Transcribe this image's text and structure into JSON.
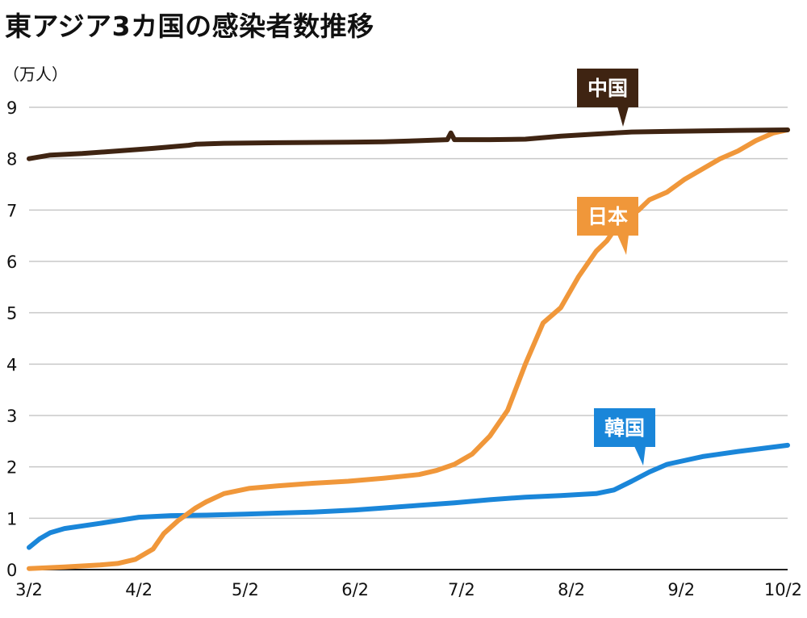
{
  "chart_data": {
    "type": "line",
    "title": "東アジア3カ国の感染者数推移",
    "unit_label": "（万人）",
    "ylim": [
      0,
      9
    ],
    "y_ticks": [
      "0",
      "1",
      "2",
      "3",
      "4",
      "5",
      "6",
      "7",
      "8",
      "9"
    ],
    "x_ticks": [
      "3/2",
      "4/2",
      "5/2",
      "6/2",
      "7/2",
      "8/2",
      "9/2",
      "10/2"
    ],
    "x_ticks_days": [
      0,
      31,
      61,
      92,
      122,
      153,
      184,
      214
    ],
    "xlim_days": [
      0,
      214
    ],
    "grid": true,
    "series": [
      {
        "name": "中国",
        "color": "#3f2412",
        "x_days": [
          0,
          6,
          15,
          25,
          35,
          45,
          47,
          55,
          70,
          90,
          100,
          110,
          118,
          119,
          120,
          121,
          130,
          140,
          150,
          160,
          170,
          180,
          190,
          200,
          214
        ],
        "values": [
          8.0,
          8.07,
          8.1,
          8.15,
          8.2,
          8.26,
          8.28,
          8.3,
          8.31,
          8.32,
          8.33,
          8.35,
          8.37,
          8.5,
          8.37,
          8.37,
          8.37,
          8.38,
          8.44,
          8.48,
          8.52,
          8.53,
          8.54,
          8.55,
          8.56
        ]
      },
      {
        "name": "日本",
        "color": "#f0973a",
        "x_days": [
          0,
          10,
          20,
          25,
          30,
          35,
          38,
          42,
          47,
          50,
          55,
          62,
          70,
          80,
          90,
          100,
          110,
          115,
          120,
          125,
          130,
          135,
          140,
          145,
          150,
          155,
          160,
          163,
          165,
          168,
          172,
          175,
          180,
          185,
          190,
          195,
          200,
          205,
          210,
          214
        ],
        "values": [
          0.02,
          0.05,
          0.09,
          0.12,
          0.2,
          0.4,
          0.7,
          0.95,
          1.2,
          1.32,
          1.48,
          1.58,
          1.63,
          1.68,
          1.72,
          1.78,
          1.85,
          1.93,
          2.05,
          2.25,
          2.6,
          3.1,
          4.0,
          4.8,
          5.1,
          5.7,
          6.2,
          6.4,
          6.6,
          6.8,
          7.0,
          7.2,
          7.35,
          7.6,
          7.8,
          8.0,
          8.15,
          8.35,
          8.5,
          8.56
        ]
      },
      {
        "name": "韓国",
        "color": "#1a86d9",
        "x_days": [
          0,
          3,
          6,
          10,
          20,
          31,
          40,
          50,
          61,
          70,
          80,
          92,
          100,
          110,
          120,
          130,
          140,
          150,
          155,
          160,
          165,
          170,
          175,
          180,
          190,
          200,
          214
        ],
        "values": [
          0.43,
          0.6,
          0.72,
          0.8,
          0.9,
          1.02,
          1.05,
          1.06,
          1.08,
          1.1,
          1.12,
          1.16,
          1.2,
          1.25,
          1.3,
          1.36,
          1.41,
          1.44,
          1.46,
          1.48,
          1.55,
          1.72,
          1.9,
          2.05,
          2.2,
          2.3,
          2.42
        ]
      }
    ],
    "callouts": [
      {
        "series": 0,
        "label": "中国"
      },
      {
        "series": 1,
        "label": "日本"
      },
      {
        "series": 2,
        "label": "韓国"
      }
    ]
  }
}
